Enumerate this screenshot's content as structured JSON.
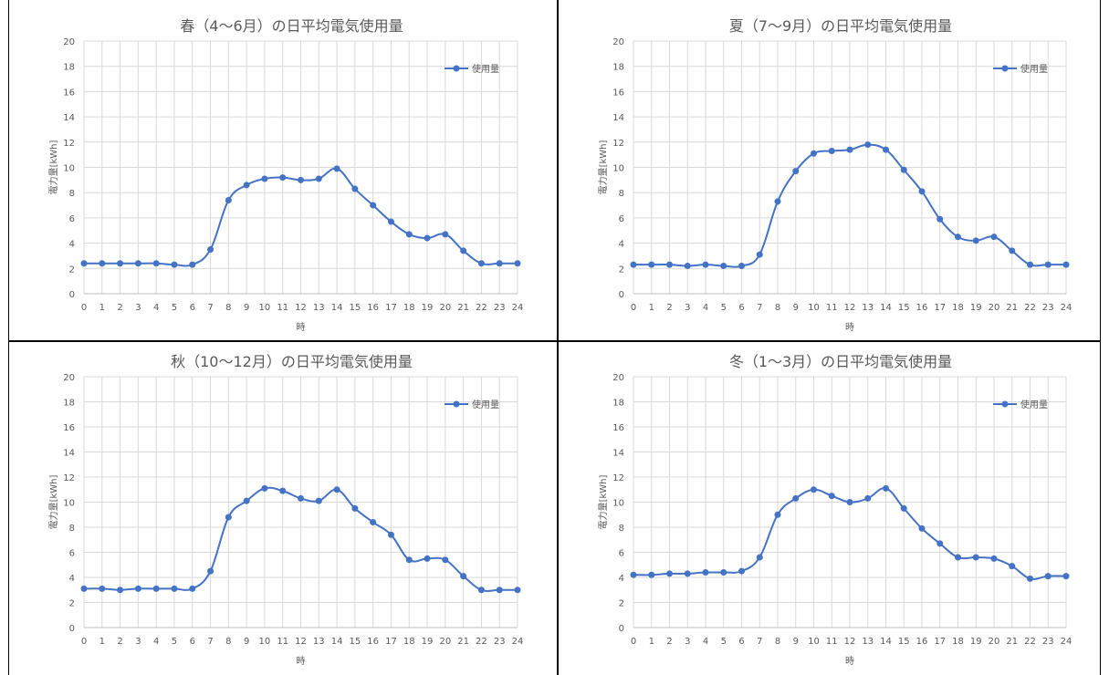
{
  "chart_data": [
    {
      "type": "line",
      "title": "春（4〜6月）の日平均電気使用量",
      "xlabel": "時",
      "ylabel": "電力量[kWh]",
      "ylim": [
        0,
        20
      ],
      "yticks": [
        0,
        2,
        4,
        6,
        8,
        10,
        12,
        14,
        16,
        18,
        20
      ],
      "x": [
        0,
        1,
        2,
        3,
        4,
        5,
        6,
        7,
        8,
        9,
        10,
        11,
        12,
        13,
        14,
        15,
        16,
        17,
        18,
        19,
        20,
        21,
        22,
        23,
        24
      ],
      "series": [
        {
          "name": "使用量",
          "values": [
            2.4,
            2.4,
            2.4,
            2.4,
            2.4,
            2.3,
            2.3,
            3.5,
            7.4,
            8.6,
            9.1,
            9.2,
            9.0,
            9.1,
            9.9,
            8.3,
            7.0,
            5.7,
            4.7,
            4.4,
            4.7,
            3.4,
            2.4,
            2.4,
            2.4
          ]
        }
      ],
      "legend": "top-right",
      "grid": true
    },
    {
      "type": "line",
      "title": "夏（7〜9月）の日平均電気使用量",
      "xlabel": "時",
      "ylabel": "電力量[kWh]",
      "ylim": [
        0,
        20
      ],
      "yticks": [
        0,
        2,
        4,
        6,
        8,
        10,
        12,
        14,
        16,
        18,
        20
      ],
      "x": [
        0,
        1,
        2,
        3,
        4,
        5,
        6,
        7,
        8,
        9,
        10,
        11,
        12,
        13,
        14,
        15,
        16,
        17,
        18,
        19,
        20,
        21,
        22,
        23,
        24
      ],
      "series": [
        {
          "name": "使用量",
          "values": [
            2.3,
            2.3,
            2.3,
            2.2,
            2.3,
            2.2,
            2.2,
            3.1,
            7.3,
            9.7,
            11.1,
            11.3,
            11.4,
            11.8,
            11.4,
            9.8,
            8.1,
            5.9,
            4.5,
            4.2,
            4.5,
            3.4,
            2.3,
            2.3,
            2.3
          ]
        }
      ],
      "legend": "top-right",
      "grid": true
    },
    {
      "type": "line",
      "title": "秋（10〜12月）の日平均電気使用量",
      "xlabel": "時",
      "ylabel": "電力量[kWh]",
      "ylim": [
        0,
        20
      ],
      "yticks": [
        0,
        2,
        4,
        6,
        8,
        10,
        12,
        14,
        16,
        18,
        20
      ],
      "x": [
        0,
        1,
        2,
        3,
        4,
        5,
        6,
        7,
        8,
        9,
        10,
        11,
        12,
        13,
        14,
        15,
        16,
        17,
        18,
        19,
        20,
        21,
        22,
        23,
        24
      ],
      "series": [
        {
          "name": "使用量",
          "values": [
            3.1,
            3.1,
            3.0,
            3.1,
            3.1,
            3.1,
            3.1,
            4.5,
            8.8,
            10.1,
            11.1,
            10.9,
            10.3,
            10.1,
            11.0,
            9.5,
            8.4,
            7.4,
            5.4,
            5.5,
            5.4,
            4.1,
            3.0,
            3.0,
            3.0
          ]
        }
      ],
      "legend": "top-right",
      "grid": true
    },
    {
      "type": "line",
      "title": "冬（1〜3月）の日平均電気使用量",
      "xlabel": "時",
      "ylabel": "電力量[kWh]",
      "ylim": [
        0,
        20
      ],
      "yticks": [
        0,
        2,
        4,
        6,
        8,
        10,
        12,
        14,
        16,
        18,
        20
      ],
      "x": [
        0,
        1,
        2,
        3,
        4,
        5,
        6,
        7,
        8,
        9,
        10,
        11,
        12,
        13,
        14,
        15,
        16,
        17,
        18,
        19,
        20,
        21,
        22,
        23,
        24
      ],
      "series": [
        {
          "name": "使用量",
          "values": [
            4.2,
            4.2,
            4.3,
            4.3,
            4.4,
            4.4,
            4.5,
            5.6,
            9.0,
            10.3,
            11.0,
            10.5,
            10.0,
            10.3,
            11.1,
            9.5,
            7.9,
            6.7,
            5.6,
            5.6,
            5.5,
            4.9,
            3.9,
            4.1,
            4.1
          ]
        }
      ],
      "legend": "top-right",
      "grid": true
    }
  ],
  "style": {
    "line_color": "#4472c4",
    "grid_color": "#d9d9d9",
    "text_color": "#595959",
    "border_color": "#000000"
  }
}
